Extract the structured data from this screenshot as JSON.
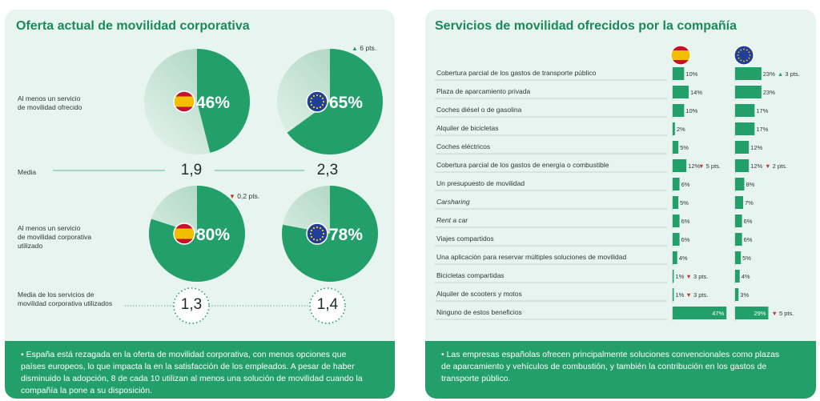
{
  "left_panel": {
    "title": "Oferta actual de movilidad corporativa",
    "row1_label": "Al menos un servicio\nde movilidad ofrecido",
    "media_label": "Media",
    "row2_label": "Al menos un servicio\nde movilidad corporativa\nutilizado",
    "media_used_label": "Media de los servicios de\nmovilidad corporativa utilizados",
    "note": "• España está rezagada en la oferta de movilidad corporativa, con menos opciones que países europeos, lo que impacta la en la satisfacción de los empleados. A pesar de haber disminuido la adopción, 8 de cada 10 utilizan al menos una solución de movilidad cuando la compañía la pone a su disposición."
  },
  "right_panel": {
    "title": "Servicios de movilidad ofrecidos por la compañía",
    "note": "• Las empresas españolas ofrecen principalmente soluciones convencionales como plazas de aparcamiento y vehículos de combustión, y también la contribución en los gastos de transporte público."
  },
  "colors": {
    "accent": "#23a06a",
    "title": "#1a8a5c",
    "panel_bg": "#e8f4ef",
    "up": "#23a06a",
    "down": "#c0392b",
    "spain_red": "#c8102e",
    "spain_yellow": "#f1bf00",
    "eu_blue": "#1f3f9a",
    "eu_star": "#ffcc00"
  },
  "chart_data": [
    {
      "type": "pie",
      "series": [
        {
          "name": "España",
          "offered": 46,
          "used": 80,
          "offered_display": "46%",
          "used_display": "80%",
          "media_offered": "1,9",
          "media_used": "1,3",
          "used_delta": "▼ 0,2 pts.",
          "icon": "spain-flag-icon"
        },
        {
          "name": "Europa",
          "offered": 65,
          "used": 78,
          "offered_display": "65%",
          "used_display": "78%",
          "media_offered": "2,3",
          "media_used": "1,4",
          "offered_delta": "▲ 6 pts.",
          "icon": "eu-flag-icon"
        }
      ]
    },
    {
      "type": "bar",
      "categories": [
        "Cobertura parcial de los gastos de transporte público",
        "Plaza de aparcamiento privada",
        "Coches diésel o de gasolina",
        "Alquiler de bicicletas",
        "Coches eléctricos",
        "Cobertura parcial de los gastos de energía o combustible",
        "Un presupuesto de movilidad",
        "Carsharing",
        "Rent a car",
        "Viajes compartidos",
        "Una aplicación para reservar múltiples soluciones de movilidad",
        "Bicicletas compartidas",
        "Alquiler de scooters y motos",
        "Ninguno de estos beneficios"
      ],
      "italic_categories": [
        7,
        8
      ],
      "series": [
        {
          "name": "España",
          "icon": "spain-flag-icon",
          "values": [
            10,
            14,
            10,
            2,
            5,
            12,
            6,
            5,
            6,
            6,
            4,
            1,
            1,
            47
          ],
          "labels": [
            "10%",
            "14%",
            "10%",
            "2%",
            "5%",
            "12%",
            "6%",
            "5%",
            "6%",
            "6%",
            "4%",
            "1%",
            "1%",
            "47%"
          ],
          "deltas": [
            "",
            "",
            "",
            "",
            "",
            "▼ 5 pts.",
            "",
            "",
            "",
            "",
            "",
            "▼ 3 pts.",
            "▼ 3 pts.",
            ""
          ]
        },
        {
          "name": "Europa",
          "icon": "eu-flag-icon",
          "values": [
            23,
            23,
            17,
            17,
            12,
            12,
            8,
            7,
            6,
            6,
            5,
            4,
            3,
            29
          ],
          "labels": [
            "23%",
            "23%",
            "17%",
            "17%",
            "12%",
            "12%",
            "8%",
            "7%",
            "6%",
            "6%",
            "5%",
            "4%",
            "3%",
            "29%"
          ],
          "deltas": [
            "▲ 3 pts.",
            "",
            "",
            "",
            "",
            "▼ 2 pts.",
            "",
            "",
            "",
            "",
            "",
            "",
            "",
            "▼ 5 pts."
          ]
        }
      ]
    }
  ]
}
